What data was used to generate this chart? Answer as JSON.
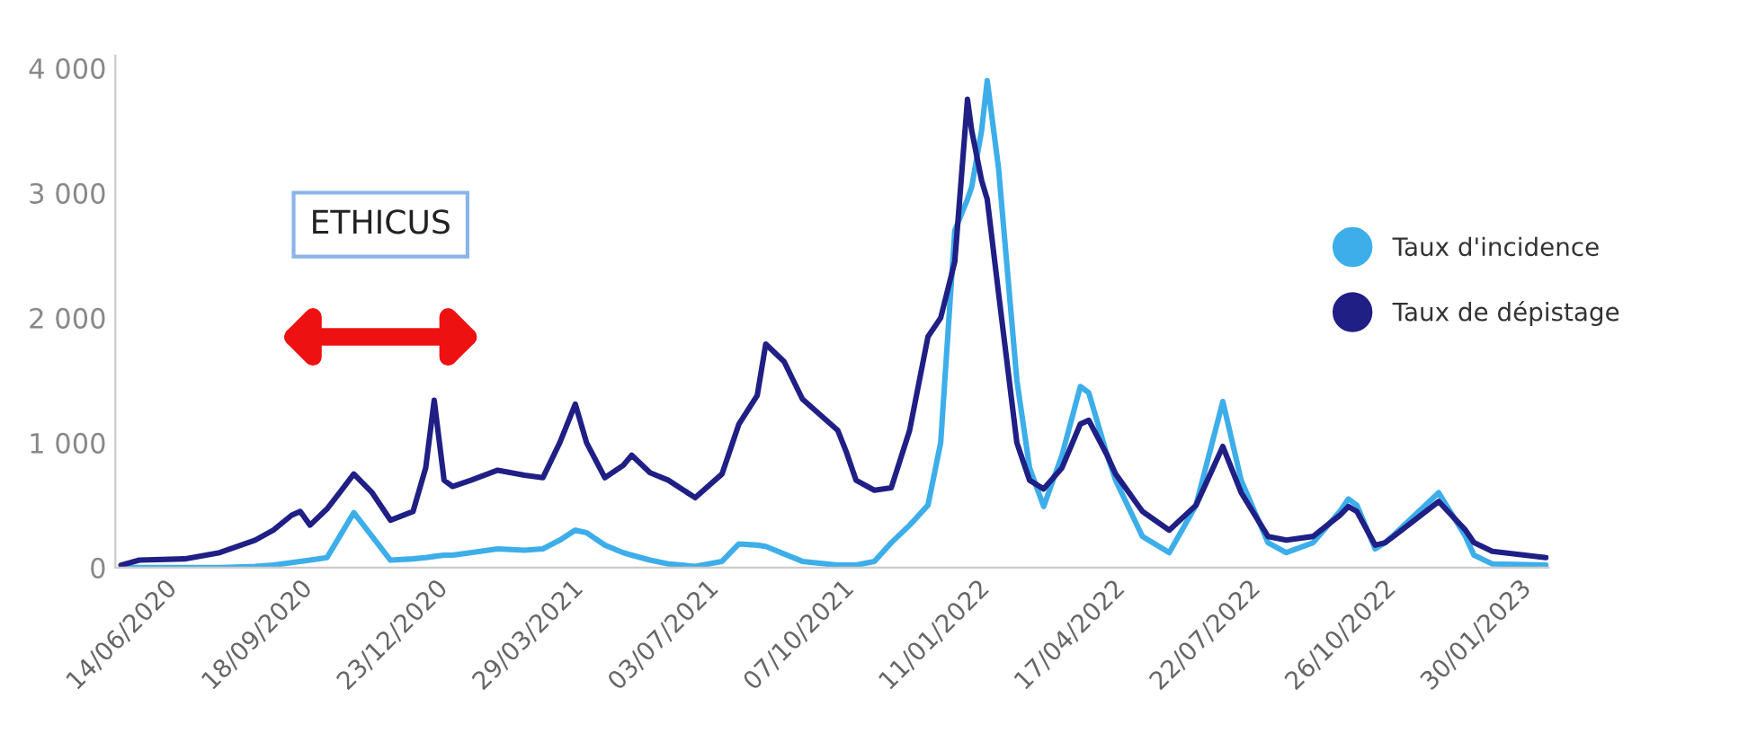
{
  "chart_data": {
    "type": "line",
    "x": [
      "2020-05-14",
      "2020-05-27",
      "2020-06-28",
      "2020-07-23",
      "2020-08-17",
      "2020-08-30",
      "2020-09-12",
      "2020-09-18",
      "2020-09-25",
      "2020-10-07",
      "2020-10-16",
      "2020-10-26",
      "2020-11-08",
      "2020-11-21",
      "2020-12-07",
      "2020-12-16",
      "2020-12-22",
      "2020-12-29",
      "2021-01-04",
      "2021-01-17",
      "2021-02-05",
      "2021-02-24",
      "2021-03-09",
      "2021-03-21",
      "2021-04-01",
      "2021-04-09",
      "2021-04-22",
      "2021-05-05",
      "2021-05-11",
      "2021-05-24",
      "2021-06-06",
      "2021-06-25",
      "2021-07-14",
      "2021-07-26",
      "2021-08-08",
      "2021-08-14",
      "2021-08-27",
      "2021-09-09",
      "2021-10-04",
      "2021-10-10",
      "2021-10-17",
      "2021-10-30",
      "2021-11-11",
      "2021-11-24",
      "2021-12-07",
      "2021-12-16",
      "2021-12-26",
      "2022-01-04",
      "2022-01-07",
      "2022-01-14",
      "2022-01-18",
      "2022-01-26",
      "2022-02-08",
      "2022-02-17",
      "2022-02-27",
      "2022-03-12",
      "2022-03-25",
      "2022-03-31",
      "2022-04-13",
      "2022-04-19",
      "2022-05-08",
      "2022-05-27",
      "2022-06-15",
      "2022-07-04",
      "2022-07-17",
      "2022-08-05",
      "2022-08-18",
      "2022-09-06",
      "2022-09-25",
      "2022-10-01",
      "2022-10-07",
      "2022-10-20",
      "2022-10-27",
      "2022-11-02",
      "2022-12-04",
      "2022-12-23",
      "2022-12-29",
      "2023-01-11",
      "2023-02-18"
    ],
    "series": [
      {
        "name": "Taux d'incidence",
        "color": "#3daee9",
        "values": [
          0,
          0,
          0,
          0,
          10,
          20,
          40,
          50,
          60,
          80,
          250,
          440,
          250,
          60,
          70,
          80,
          90,
          100,
          100,
          120,
          150,
          140,
          150,
          220,
          300,
          280,
          180,
          120,
          100,
          60,
          30,
          10,
          50,
          190,
          180,
          170,
          110,
          50,
          20,
          20,
          20,
          50,
          200,
          340,
          500,
          1000,
          2700,
          2950,
          3050,
          3500,
          3900,
          3200,
          1500,
          800,
          490,
          900,
          1450,
          1400,
          900,
          700,
          250,
          120,
          500,
          1330,
          700,
          200,
          120,
          200,
          450,
          550,
          500,
          150,
          200,
          260,
          600,
          250,
          100,
          30,
          20
        ]
      },
      {
        "name": "Taux de dépistage",
        "color": "#1f1f85",
        "values": [
          20,
          60,
          70,
          120,
          220,
          300,
          420,
          450,
          340,
          470,
          600,
          750,
          600,
          380,
          450,
          800,
          1340,
          700,
          650,
          700,
          780,
          740,
          720,
          1000,
          1310,
          1000,
          720,
          820,
          900,
          760,
          700,
          560,
          750,
          1150,
          1380,
          1790,
          1650,
          1350,
          1100,
          930,
          700,
          620,
          640,
          1100,
          1850,
          2000,
          2450,
          3750,
          3500,
          3100,
          2950,
          2200,
          1000,
          700,
          630,
          800,
          1150,
          1180,
          900,
          750,
          450,
          300,
          500,
          970,
          600,
          250,
          220,
          250,
          420,
          490,
          450,
          180,
          200,
          250,
          530,
          300,
          200,
          130,
          80
        ]
      }
    ],
    "xlim": [
      "2020-05-10",
      "2023-02-20"
    ],
    "xticks": [
      {
        "value": "2020-06-14",
        "label": "14/06/2020"
      },
      {
        "value": "2020-09-18",
        "label": "18/09/2020"
      },
      {
        "value": "2020-12-23",
        "label": "23/12/2020"
      },
      {
        "value": "2021-03-29",
        "label": "29/03/2021"
      },
      {
        "value": "2021-07-03",
        "label": "03/07/2021"
      },
      {
        "value": "2021-10-07",
        "label": "07/10/2021"
      },
      {
        "value": "2022-01-11",
        "label": "11/01/2022"
      },
      {
        "value": "2022-04-17",
        "label": "17/04/2022"
      },
      {
        "value": "2022-07-22",
        "label": "22/07/2022"
      },
      {
        "value": "2022-10-26",
        "label": "26/10/2022"
      },
      {
        "value": "2023-01-30",
        "label": "30/01/2023"
      }
    ],
    "ylim": [
      0,
      4100
    ],
    "yticks": [
      0,
      {
        "value": 1000,
        "label": "1 000"
      },
      {
        "value": 2000,
        "label": "2 000"
      },
      {
        "value": 3000,
        "label": "3 000"
      },
      {
        "value": 4000,
        "label": "4 000"
      }
    ],
    "annotations": [
      "ETHICUS"
    ],
    "grid": false,
    "legend": "right",
    "marker": "none",
    "line_style": "solid"
  }
}
